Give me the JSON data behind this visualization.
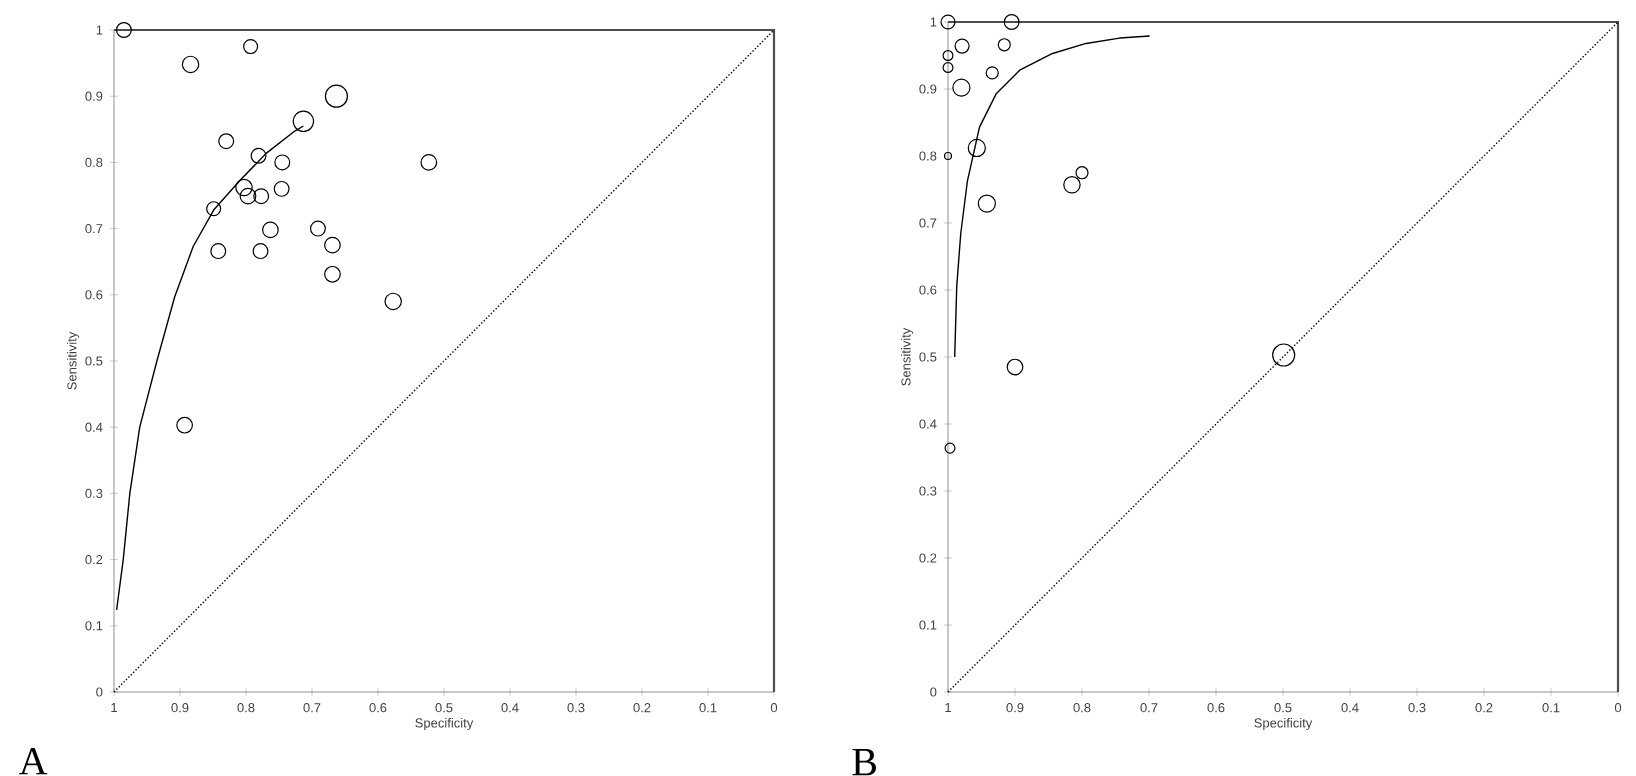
{
  "chart_data": [
    {
      "type": "bubble",
      "xlabel": "Specificity",
      "ylabel": "Sensitivity",
      "annotations": [
        "A"
      ],
      "xlim": [
        1,
        0
      ],
      "ylim": [
        0,
        1
      ],
      "xticks": [
        1,
        0.9,
        0.8,
        0.7,
        0.6,
        0.5,
        0.4,
        0.3,
        0.2,
        0.1,
        0
      ],
      "yticks": [
        0,
        0.1,
        0.2,
        0.3,
        0.4,
        0.5,
        0.6,
        0.7,
        0.8,
        0.9,
        1
      ],
      "series": [
        {
          "color": "#000000",
          "x": [
            0.985,
            0.884,
            0.793,
            0.663,
            0.713,
            0.83,
            0.781,
            0.745,
            0.523,
            0.803,
            0.746,
            0.797,
            0.777,
            0.849,
            0.763,
            0.691,
            0.669,
            0.842,
            0.778,
            0.669,
            0.577,
            0.893
          ],
          "values": [
            1.0,
            0.948,
            0.975,
            0.9,
            0.862,
            0.832,
            0.81,
            0.8,
            0.8,
            0.762,
            0.76,
            0.749,
            0.749,
            0.73,
            0.698,
            0.7,
            0.675,
            0.666,
            0.666,
            0.631,
            0.59,
            0.403
          ],
          "sizes": [
            0.45,
            0.55,
            0.4,
            1,
            0.85,
            0.45,
            0.45,
            0.45,
            0.5,
            0.55,
            0.45,
            0.5,
            0.45,
            0.4,
            0.5,
            0.45,
            0.5,
            0.45,
            0.45,
            0.5,
            0.55,
            0.5
          ]
        },
        {
          "type": "line",
          "color": "#000000",
          "line_style": "solid",
          "x": [
            0.996,
            0.986,
            0.976,
            0.961,
            0.935,
            0.908,
            0.88,
            0.849,
            0.809,
            0.769,
            0.728,
            0.713
          ],
          "values": [
            0.124,
            0.2,
            0.3,
            0.4,
            0.5,
            0.597,
            0.673,
            0.728,
            0.773,
            0.814,
            0.846,
            0.855
          ]
        },
        {
          "type": "line",
          "color": "#000000",
          "line_style": "dotted",
          "x": [
            1,
            0
          ],
          "values": [
            0,
            1
          ]
        }
      ]
    },
    {
      "type": "bubble",
      "xlabel": "Specificity",
      "ylabel": "Sensitivity",
      "annotations": [
        "B"
      ],
      "xlim": [
        1,
        0
      ],
      "ylim": [
        0,
        1
      ],
      "xticks": [
        1,
        0.9,
        0.8,
        0.7,
        0.6,
        0.5,
        0.4,
        0.3,
        0.2,
        0.1,
        0
      ],
      "yticks": [
        0,
        0.1,
        0.2,
        0.3,
        0.4,
        0.5,
        0.6,
        0.7,
        0.8,
        0.9,
        1
      ],
      "series": [
        {
          "color": "#000000",
          "x": [
            1,
            0.905,
            0.979,
            0.916,
            1,
            1,
            0.934,
            0.98,
            0.957,
            1,
            0.8,
            0.815,
            0.942,
            0.9,
            0.499,
            0.997
          ],
          "values": [
            1,
            1,
            0.964,
            0.966,
            0.95,
            0.932,
            0.924,
            0.902,
            0.812,
            0.8,
            0.775,
            0.757,
            0.729,
            0.485,
            0.503,
            0.364
          ],
          "sizes": [
            0.4,
            0.45,
            0.4,
            0.3,
            0.2,
            0.2,
            0.3,
            0.6,
            0.6,
            0.1,
            0.3,
            0.55,
            0.6,
            0.5,
            1,
            0.2
          ]
        },
        {
          "type": "line",
          "color": "#000000",
          "line_style": "solid",
          "x": [
            0.99,
            0.987,
            0.981,
            0.971,
            0.953,
            0.928,
            0.893,
            0.844,
            0.794,
            0.744,
            0.699
          ],
          "values": [
            0.5,
            0.605,
            0.684,
            0.763,
            0.843,
            0.893,
            0.928,
            0.953,
            0.968,
            0.976,
            0.979
          ]
        },
        {
          "type": "line",
          "color": "#000000",
          "line_style": "dotted",
          "x": [
            1,
            0
          ],
          "values": [
            0,
            1
          ]
        }
      ]
    }
  ]
}
